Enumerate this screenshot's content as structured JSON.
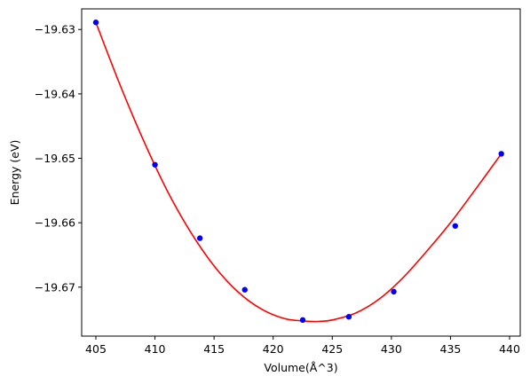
{
  "chart_data": {
    "type": "scatter",
    "title": "",
    "xlabel": "Volume(Å^3)",
    "ylabel": "Energy (eV)",
    "xlim": [
      403.8,
      440.9
    ],
    "ylim": [
      -19.6776,
      -19.6268
    ],
    "xticks": [
      405,
      410,
      415,
      420,
      425,
      430,
      435,
      440
    ],
    "yticks": [
      -19.63,
      -19.64,
      -19.65,
      -19.66,
      -19.67
    ],
    "ytick_labels": [
      "−19.63",
      "−19.64",
      "−19.65",
      "−19.66",
      "−19.67"
    ],
    "grid": false,
    "colors": {
      "points": "#0000ff",
      "fit": "#ff0000",
      "axes": "#000000"
    },
    "series": [
      {
        "kind": "points",
        "x": [
          405.0,
          410.0,
          413.8,
          417.6,
          422.5,
          426.4,
          430.2,
          435.4,
          439.3
        ],
        "y": [
          -19.6289,
          -19.651,
          -19.6624,
          -19.6704,
          -19.6751,
          -19.6746,
          -19.6707,
          -19.6605,
          -19.6493
        ]
      },
      {
        "kind": "fit-curve",
        "x": [
          405.0,
          407.0,
          409.0,
          411.0,
          413.0,
          415.0,
          417.0,
          419.0,
          421.0,
          423.0,
          424.0,
          425.0,
          427.0,
          429.0,
          431.0,
          433.0,
          435.0,
          437.0,
          439.3
        ],
        "y": [
          -19.6289,
          -19.6384,
          -19.6471,
          -19.6549,
          -19.6614,
          -19.6667,
          -19.6707,
          -19.6734,
          -19.6749,
          -19.6753,
          -19.6753,
          -19.6751,
          -19.674,
          -19.6718,
          -19.6685,
          -19.6644,
          -19.66,
          -19.6551,
          -19.6493
        ]
      }
    ]
  }
}
